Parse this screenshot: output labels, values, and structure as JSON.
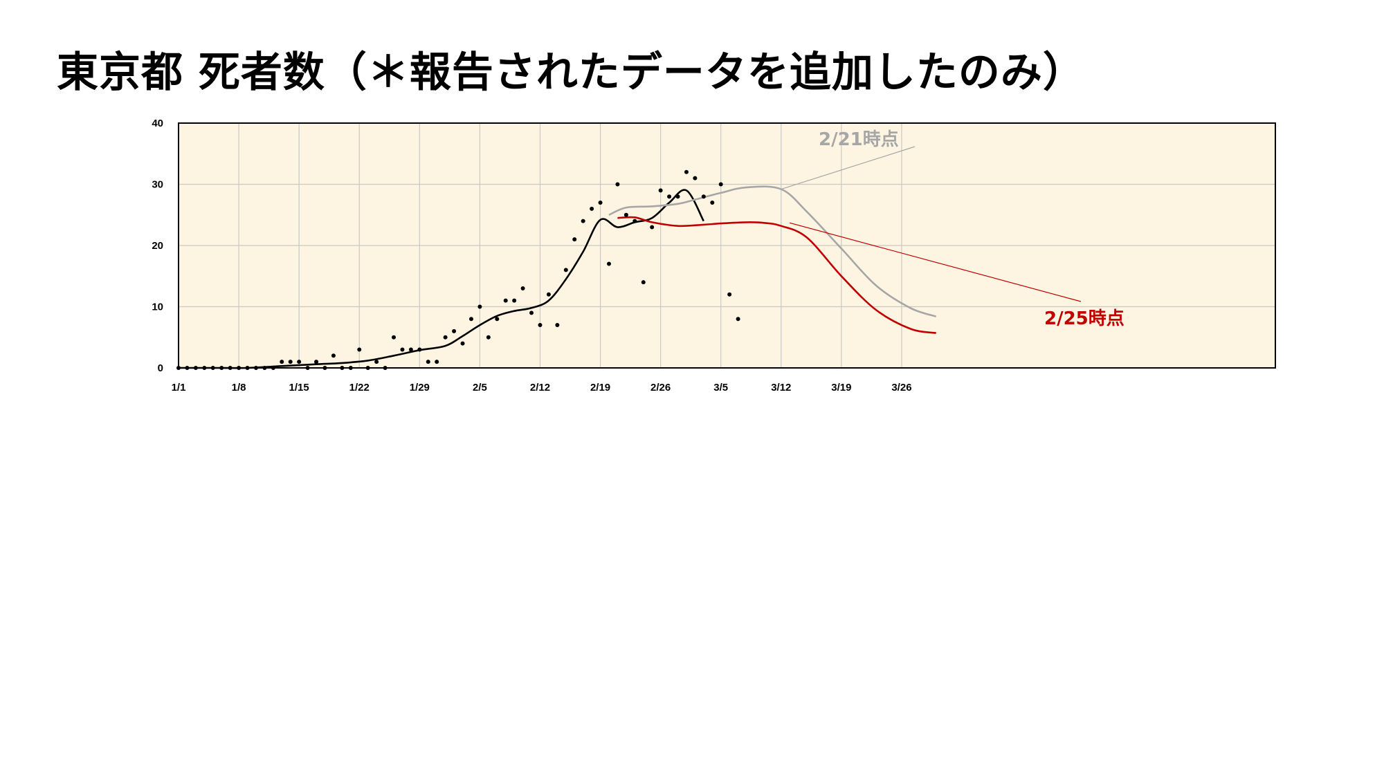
{
  "title": "東京都 死者数（＊報告されたデータを追加したのみ）",
  "colors": {
    "background": "#fdf5e2",
    "grid": "#c8c8c8",
    "observed": "#000000",
    "forecast_0221": "#a6a6a6",
    "forecast_0225": "#c00000"
  },
  "chart_data": {
    "type": "scatter",
    "x_axis": {
      "type": "date",
      "start": "1/1",
      "end": "4/1",
      "tick_labels": [
        "1/1",
        "1/8",
        "1/15",
        "1/22",
        "1/29",
        "2/5",
        "2/12",
        "2/19",
        "2/26",
        "3/5",
        "3/12",
        "3/19",
        "3/26"
      ]
    },
    "y_axis": {
      "ylim": [
        0,
        40
      ],
      "ticks": [
        0,
        10,
        20,
        30,
        40
      ]
    },
    "grid": true,
    "series": [
      {
        "kind": "points",
        "x": [
          "1/1",
          "1/2",
          "1/3",
          "1/4",
          "1/5",
          "1/6",
          "1/7",
          "1/8",
          "1/9",
          "1/10",
          "1/11",
          "1/12",
          "1/13",
          "1/14",
          "1/15",
          "1/16",
          "1/17",
          "1/18",
          "1/19",
          "1/20",
          "1/21",
          "1/22",
          "1/23",
          "1/24",
          "1/25",
          "1/26",
          "1/27",
          "1/28",
          "1/29",
          "1/30",
          "1/31",
          "2/1",
          "2/2",
          "2/3",
          "2/4",
          "2/5",
          "2/6",
          "2/7",
          "2/8",
          "2/9",
          "2/10",
          "2/11",
          "2/12",
          "2/13",
          "2/14",
          "2/15",
          "2/16",
          "2/17",
          "2/18",
          "2/19",
          "2/20",
          "2/21",
          "2/22",
          "2/23",
          "2/24",
          "2/25",
          "2/26",
          "2/27",
          "2/28",
          "3/1",
          "3/2",
          "3/3",
          "3/4",
          "3/5",
          "3/6",
          "3/7"
        ],
        "y": [
          0,
          0,
          0,
          0,
          0,
          0,
          0,
          0,
          0,
          0,
          0,
          0,
          1,
          1,
          1,
          0,
          1,
          0,
          2,
          0,
          0,
          3,
          0,
          1,
          0,
          5,
          3,
          3,
          3,
          1,
          1,
          5,
          6,
          4,
          8,
          10,
          5,
          8,
          11,
          11,
          13,
          9,
          7,
          12,
          7,
          16,
          21,
          24,
          26,
          27,
          17,
          30,
          25,
          24,
          14,
          23,
          29,
          28,
          28,
          32,
          31,
          28,
          27,
          30,
          12,
          8
        ]
      },
      {
        "kind": "line",
        "x": [
          "1/1",
          "1/5",
          "1/9",
          "1/13",
          "1/17",
          "1/20",
          "1/23",
          "1/26",
          "1/29",
          "2/1",
          "2/3",
          "2/5",
          "2/7",
          "2/9",
          "2/11",
          "2/13",
          "2/15",
          "2/17",
          "2/19",
          "2/21",
          "2/23",
          "2/25",
          "2/27",
          "3/1",
          "3/3"
        ],
        "y": [
          0,
          0,
          0,
          0.3,
          0.6,
          0.8,
          1.2,
          2.0,
          2.9,
          3.6,
          5.2,
          7.0,
          8.5,
          9.3,
          9.8,
          11.0,
          14.5,
          19.0,
          24.2,
          23.0,
          23.8,
          24.5,
          27.0,
          29.0,
          24.0
        ]
      },
      {
        "kind": "line",
        "x": [
          "2/20",
          "2/22",
          "2/25",
          "2/28",
          "3/2",
          "3/5",
          "3/8",
          "3/12",
          "3/15",
          "3/19",
          "3/23",
          "3/27",
          "3/30"
        ],
        "y": [
          25.0,
          26.2,
          26.4,
          26.8,
          27.5,
          28.6,
          29.5,
          29.2,
          25.5,
          19.5,
          13.5,
          9.8,
          8.4
        ]
      },
      {
        "kind": "line",
        "x": [
          "2/21",
          "2/23",
          "2/25",
          "2/28",
          "3/3",
          "3/5",
          "3/8",
          "3/10",
          "3/12",
          "3/15",
          "3/19",
          "3/23",
          "3/27",
          "3/30"
        ],
        "y": [
          24.5,
          24.6,
          23.8,
          23.2,
          23.4,
          23.6,
          23.8,
          23.7,
          23.2,
          21.3,
          15.0,
          9.5,
          6.4,
          5.7
        ]
      }
    ],
    "annotations": [
      {
        "text": "2/21時点",
        "points_to": [
          "3/12",
          29.2
        ]
      },
      {
        "text": "2/25時点",
        "points_to": [
          "3/13",
          23.7
        ]
      }
    ]
  }
}
